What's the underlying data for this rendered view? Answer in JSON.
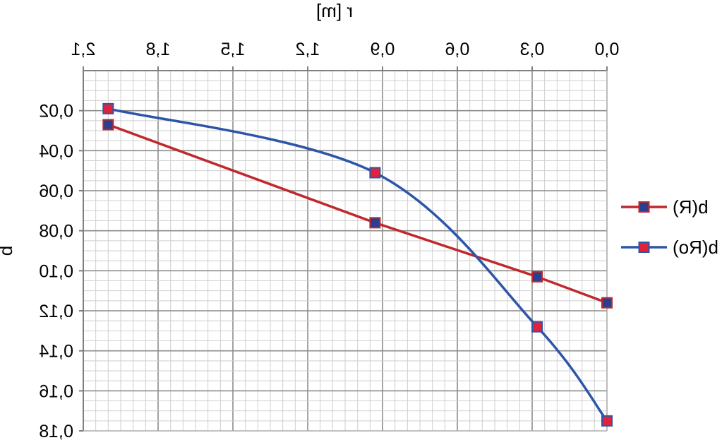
{
  "chart_data": {
    "type": "line",
    "title": "",
    "xlabel": "r  [m]",
    "ylabel": "b",
    "xlim": [
      0,
      2.1
    ],
    "ylim": [
      0,
      0.18
    ],
    "x_ticks": [
      "0,0",
      "0,3",
      "0,6",
      "0,9",
      "1,2",
      "1,5",
      "1,8",
      "2,1"
    ],
    "y_ticks": [
      "0,02",
      "0,04",
      "0,06",
      "0,08",
      "0,10",
      "0,12",
      "0,14",
      "0,16",
      "0,18"
    ],
    "x_axis_position": "top",
    "image_mirrored_horizontally": true,
    "grid": true,
    "legend_position": "right",
    "series": [
      {
        "name": "b(R)",
        "color": "#c0282d",
        "marker_fill": "#2b3f8f",
        "x": [
          0.0,
          0.28,
          0.93,
          2.0
        ],
        "y": [
          0.116,
          0.103,
          0.076,
          0.027
        ]
      },
      {
        "name": "b(Ro)",
        "color": "#2d55a8",
        "marker_fill": "#e0233a",
        "x": [
          0.0,
          0.28,
          0.93,
          2.0
        ],
        "y": [
          0.175,
          0.128,
          0.051,
          0.019
        ]
      }
    ]
  }
}
